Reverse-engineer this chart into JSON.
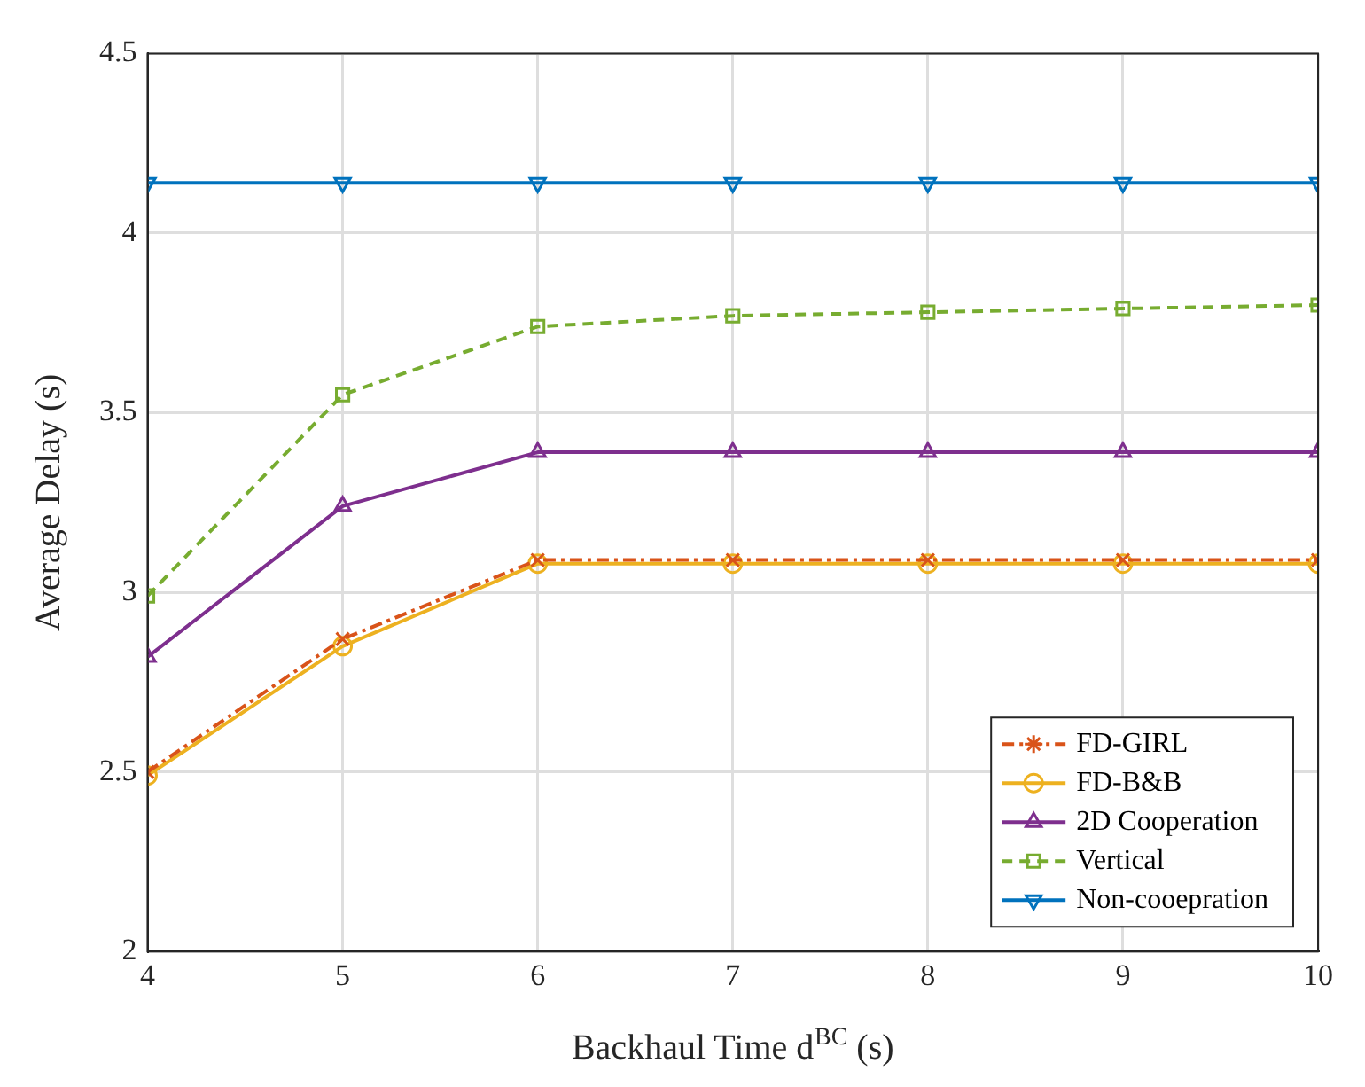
{
  "chart_data": {
    "type": "line",
    "xlabel": "Backhaul Time d$^{BC}$ (s)",
    "ylabel": "Average Delay (s)",
    "x": [
      4,
      5,
      6,
      7,
      8,
      9,
      10
    ],
    "series": [
      {
        "name": "FD-GIRL",
        "color": "#d95319",
        "marker": "cross",
        "line_style": "dashdot",
        "values": [
          2.5,
          2.87,
          3.09,
          3.09,
          3.09,
          3.09,
          3.09
        ]
      },
      {
        "name": "FD-B&B",
        "color": "#edb120",
        "marker": "circle",
        "line_style": "solid",
        "values": [
          2.49,
          2.85,
          3.08,
          3.08,
          3.08,
          3.08,
          3.08
        ]
      },
      {
        "name": "2D Cooperation",
        "color": "#7e2f8e",
        "marker": "triangle",
        "line_style": "solid",
        "values": [
          2.82,
          3.24,
          3.39,
          3.39,
          3.39,
          3.39,
          3.39
        ]
      },
      {
        "name": "Vertical",
        "color": "#77ac30",
        "marker": "square",
        "line_style": "dashed",
        "values": [
          2.99,
          3.55,
          3.74,
          3.77,
          3.78,
          3.79,
          3.8
        ]
      },
      {
        "name": "Non-cooepration",
        "color": "#0072bd",
        "marker": "triangle-down",
        "line_style": "solid",
        "values": [
          4.14,
          4.14,
          4.14,
          4.14,
          4.14,
          4.14,
          4.14
        ]
      }
    ],
    "xlim": [
      4,
      10
    ],
    "xticks": [
      4,
      5,
      6,
      7,
      8,
      9,
      10
    ],
    "ylim": [
      2,
      4.5
    ],
    "yticks": [
      2,
      2.5,
      3,
      3.5,
      4,
      4.5
    ],
    "grid": true,
    "legend": "bottom right"
  }
}
